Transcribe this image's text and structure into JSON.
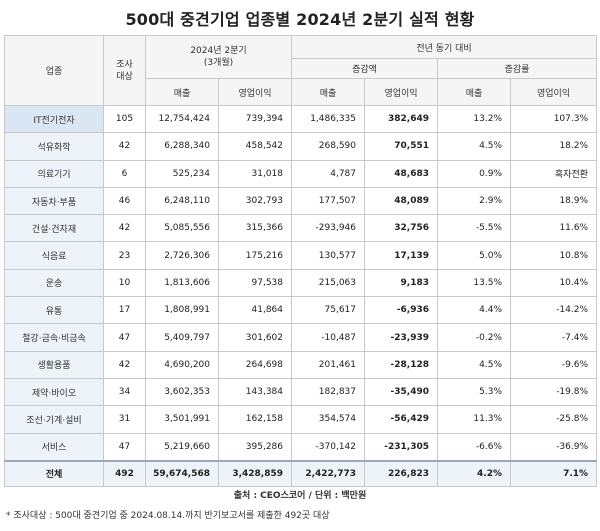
{
  "title": "500대 중견기업 업종별 2024년 2분기 실적 현황",
  "header": {
    "industry": "업종",
    "count": "조사\n대상",
    "period": "2024년 2분기\n(3개월)",
    "yoy": "전년 동기 대비",
    "change": "증감액",
    "rate": "증감률",
    "sales": "매출",
    "op": "영업이익"
  },
  "rows": [
    {
      "name": "IT전기전자",
      "count": "105",
      "sales": "12,754,424",
      "op": "739,394",
      "d_sales": "1,486,335",
      "d_op": "382,649",
      "r_sales": "13.2%",
      "r_op": "107.3%"
    },
    {
      "name": "석유화학",
      "count": "42",
      "sales": "6,288,340",
      "op": "458,542",
      "d_sales": "268,590",
      "d_op": "70,551",
      "r_sales": "4.5%",
      "r_op": "18.2%"
    },
    {
      "name": "의료기기",
      "count": "6",
      "sales": "525,234",
      "op": "31,018",
      "d_sales": "4,787",
      "d_op": "48,683",
      "r_sales": "0.9%",
      "r_op": "흑자전환"
    },
    {
      "name": "자동차·부품",
      "count": "46",
      "sales": "6,248,110",
      "op": "302,793",
      "d_sales": "177,507",
      "d_op": "48,089",
      "r_sales": "2.9%",
      "r_op": "18.9%"
    },
    {
      "name": "건설·건자재",
      "count": "42",
      "sales": "5,085,556",
      "op": "315,366",
      "d_sales": "-293,946",
      "d_op": "32,756",
      "r_sales": "-5.5%",
      "r_op": "11.6%"
    },
    {
      "name": "식음료",
      "count": "23",
      "sales": "2,726,306",
      "op": "175,216",
      "d_sales": "130,577",
      "d_op": "17,139",
      "r_sales": "5.0%",
      "r_op": "10.8%"
    },
    {
      "name": "운송",
      "count": "10",
      "sales": "1,813,606",
      "op": "97,538",
      "d_sales": "215,063",
      "d_op": "9,183",
      "r_sales": "13.5%",
      "r_op": "10.4%"
    },
    {
      "name": "유통",
      "count": "17",
      "sales": "1,808,991",
      "op": "41,864",
      "d_sales": "75,617",
      "d_op": "-6,936",
      "r_sales": "4.4%",
      "r_op": "-14.2%"
    },
    {
      "name": "철강·금속·비금속",
      "count": "47",
      "sales": "5,409,797",
      "op": "301,602",
      "d_sales": "-10,487",
      "d_op": "-23,939",
      "r_sales": "-0.2%",
      "r_op": "-7.4%"
    },
    {
      "name": "생활용품",
      "count": "42",
      "sales": "4,690,200",
      "op": "264,698",
      "d_sales": "201,461",
      "d_op": "-28,128",
      "r_sales": "4.5%",
      "r_op": "-9.6%"
    },
    {
      "name": "제약·바이오",
      "count": "34",
      "sales": "3,602,353",
      "op": "143,384",
      "d_sales": "182,837",
      "d_op": "-35,490",
      "r_sales": "5.3%",
      "r_op": "-19.8%"
    },
    {
      "name": "조선·기계·설비",
      "count": "31",
      "sales": "3,501,991",
      "op": "162,158",
      "d_sales": "354,574",
      "d_op": "-56,429",
      "r_sales": "11.3%",
      "r_op": "-25.8%"
    },
    {
      "name": "서비스",
      "count": "47",
      "sales": "5,219,660",
      "op": "395,286",
      "d_sales": "-370,142",
      "d_op": "-231,305",
      "r_sales": "-6.6%",
      "r_op": "-36.9%"
    }
  ],
  "total": {
    "name": "전체",
    "count": "492",
    "sales": "59,674,568",
    "op": "3,428,859",
    "d_sales": "2,422,773",
    "d_op": "226,823",
    "r_sales": "4.2%",
    "r_op": "7.1%"
  },
  "source": "출처 : CEO스코어 / 단위 : 백만원",
  "note": "* 조사대상 : 500대 중견기업 중 2024.08.14.까지 반기보고서를 제출한 492곳 대상"
}
